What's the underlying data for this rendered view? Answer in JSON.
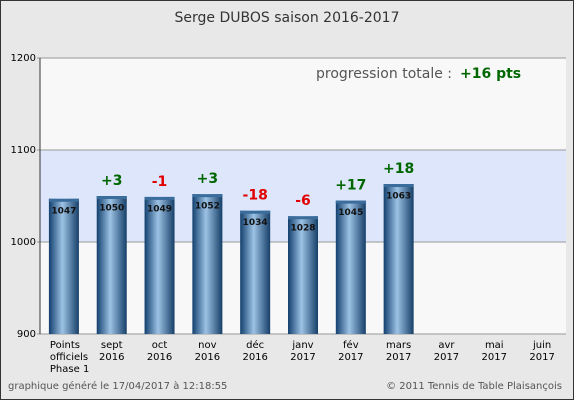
{
  "chart_data": {
    "type": "bar",
    "title": "Serge DUBOS    saison 2016-2017",
    "categories": [
      [
        "Points",
        "officiels",
        "Phase 1"
      ],
      [
        "sept",
        "2016"
      ],
      [
        "oct",
        "2016"
      ],
      [
        "nov",
        "2016"
      ],
      [
        "déc",
        "2016"
      ],
      [
        "janv",
        "2017"
      ],
      [
        "fév",
        "2017"
      ],
      [
        "mars",
        "2017"
      ],
      [
        "avr",
        "2017"
      ],
      [
        "mai",
        "2017"
      ],
      [
        "juin",
        "2017"
      ]
    ],
    "values": [
      1047,
      1050,
      1049,
      1052,
      1034,
      1028,
      1045,
      1063,
      null,
      null,
      null
    ],
    "changes": [
      null,
      3,
      -1,
      3,
      -18,
      -6,
      17,
      18,
      null,
      null,
      null
    ],
    "change_labels": [
      null,
      "+3",
      "-1",
      "+3",
      "-18",
      "-6",
      "+17",
      "+18",
      null,
      null,
      null
    ],
    "positive_color": "#006600",
    "negative_color": "#e00000",
    "ylim": [
      900,
      1200
    ],
    "yticks": [
      900,
      1000,
      1100,
      1200
    ],
    "bands": [
      {
        "from": 1000,
        "to": 1100,
        "color": "#dde6fb"
      }
    ],
    "annotation": "progression totale :",
    "annotation_value": "+16 pts",
    "footer_left": "graphique généré le 17/04/2017 à 12:18:55",
    "footer_right": "© 2011 Tennis de Table Plaisançois"
  }
}
